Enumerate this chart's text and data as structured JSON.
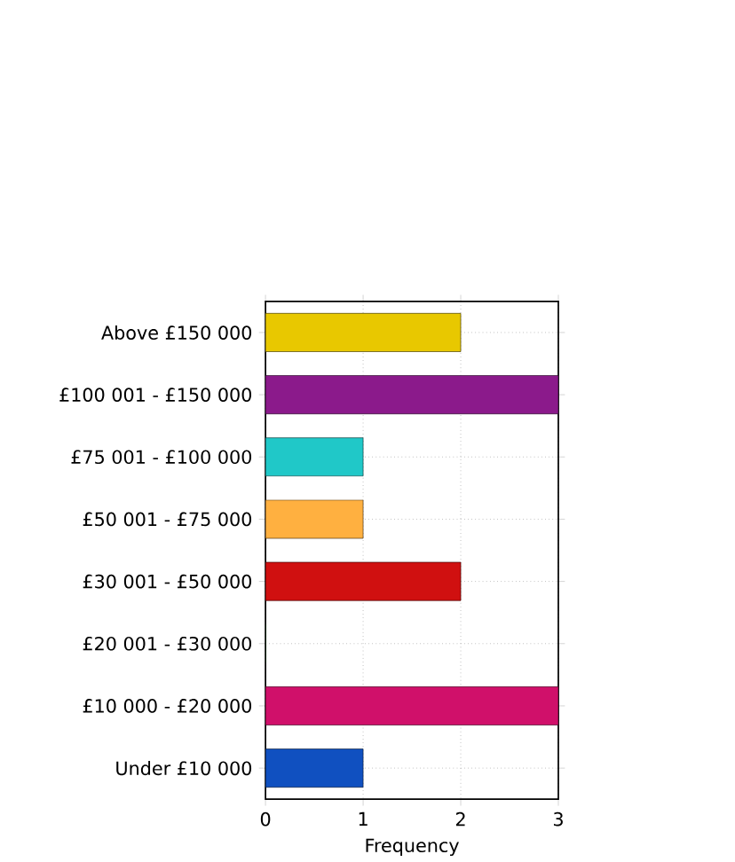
{
  "chart_data": {
    "type": "bar",
    "orientation": "horizontal",
    "categories": [
      "Above £150 000",
      "£100 001 - £150 000",
      "£75 001 - £100 000",
      "£50 001 - £75 000",
      "£30 001 - £50 000",
      "£20 001 - £30 000",
      "£10 000 - £20 000",
      "Under £10 000"
    ],
    "values": [
      2,
      3,
      1,
      1,
      2,
      0,
      3,
      1
    ],
    "colors": [
      "#e8c800",
      "#8b1a8b",
      "#20c8c8",
      "#ffb040",
      "#d01010",
      "#008000",
      "#d0106a",
      "#1050c0"
    ],
    "xlabel": "Frequency",
    "xlim": [
      0,
      3
    ],
    "xticks": [
      0,
      1,
      2,
      3
    ],
    "grid": true
  }
}
